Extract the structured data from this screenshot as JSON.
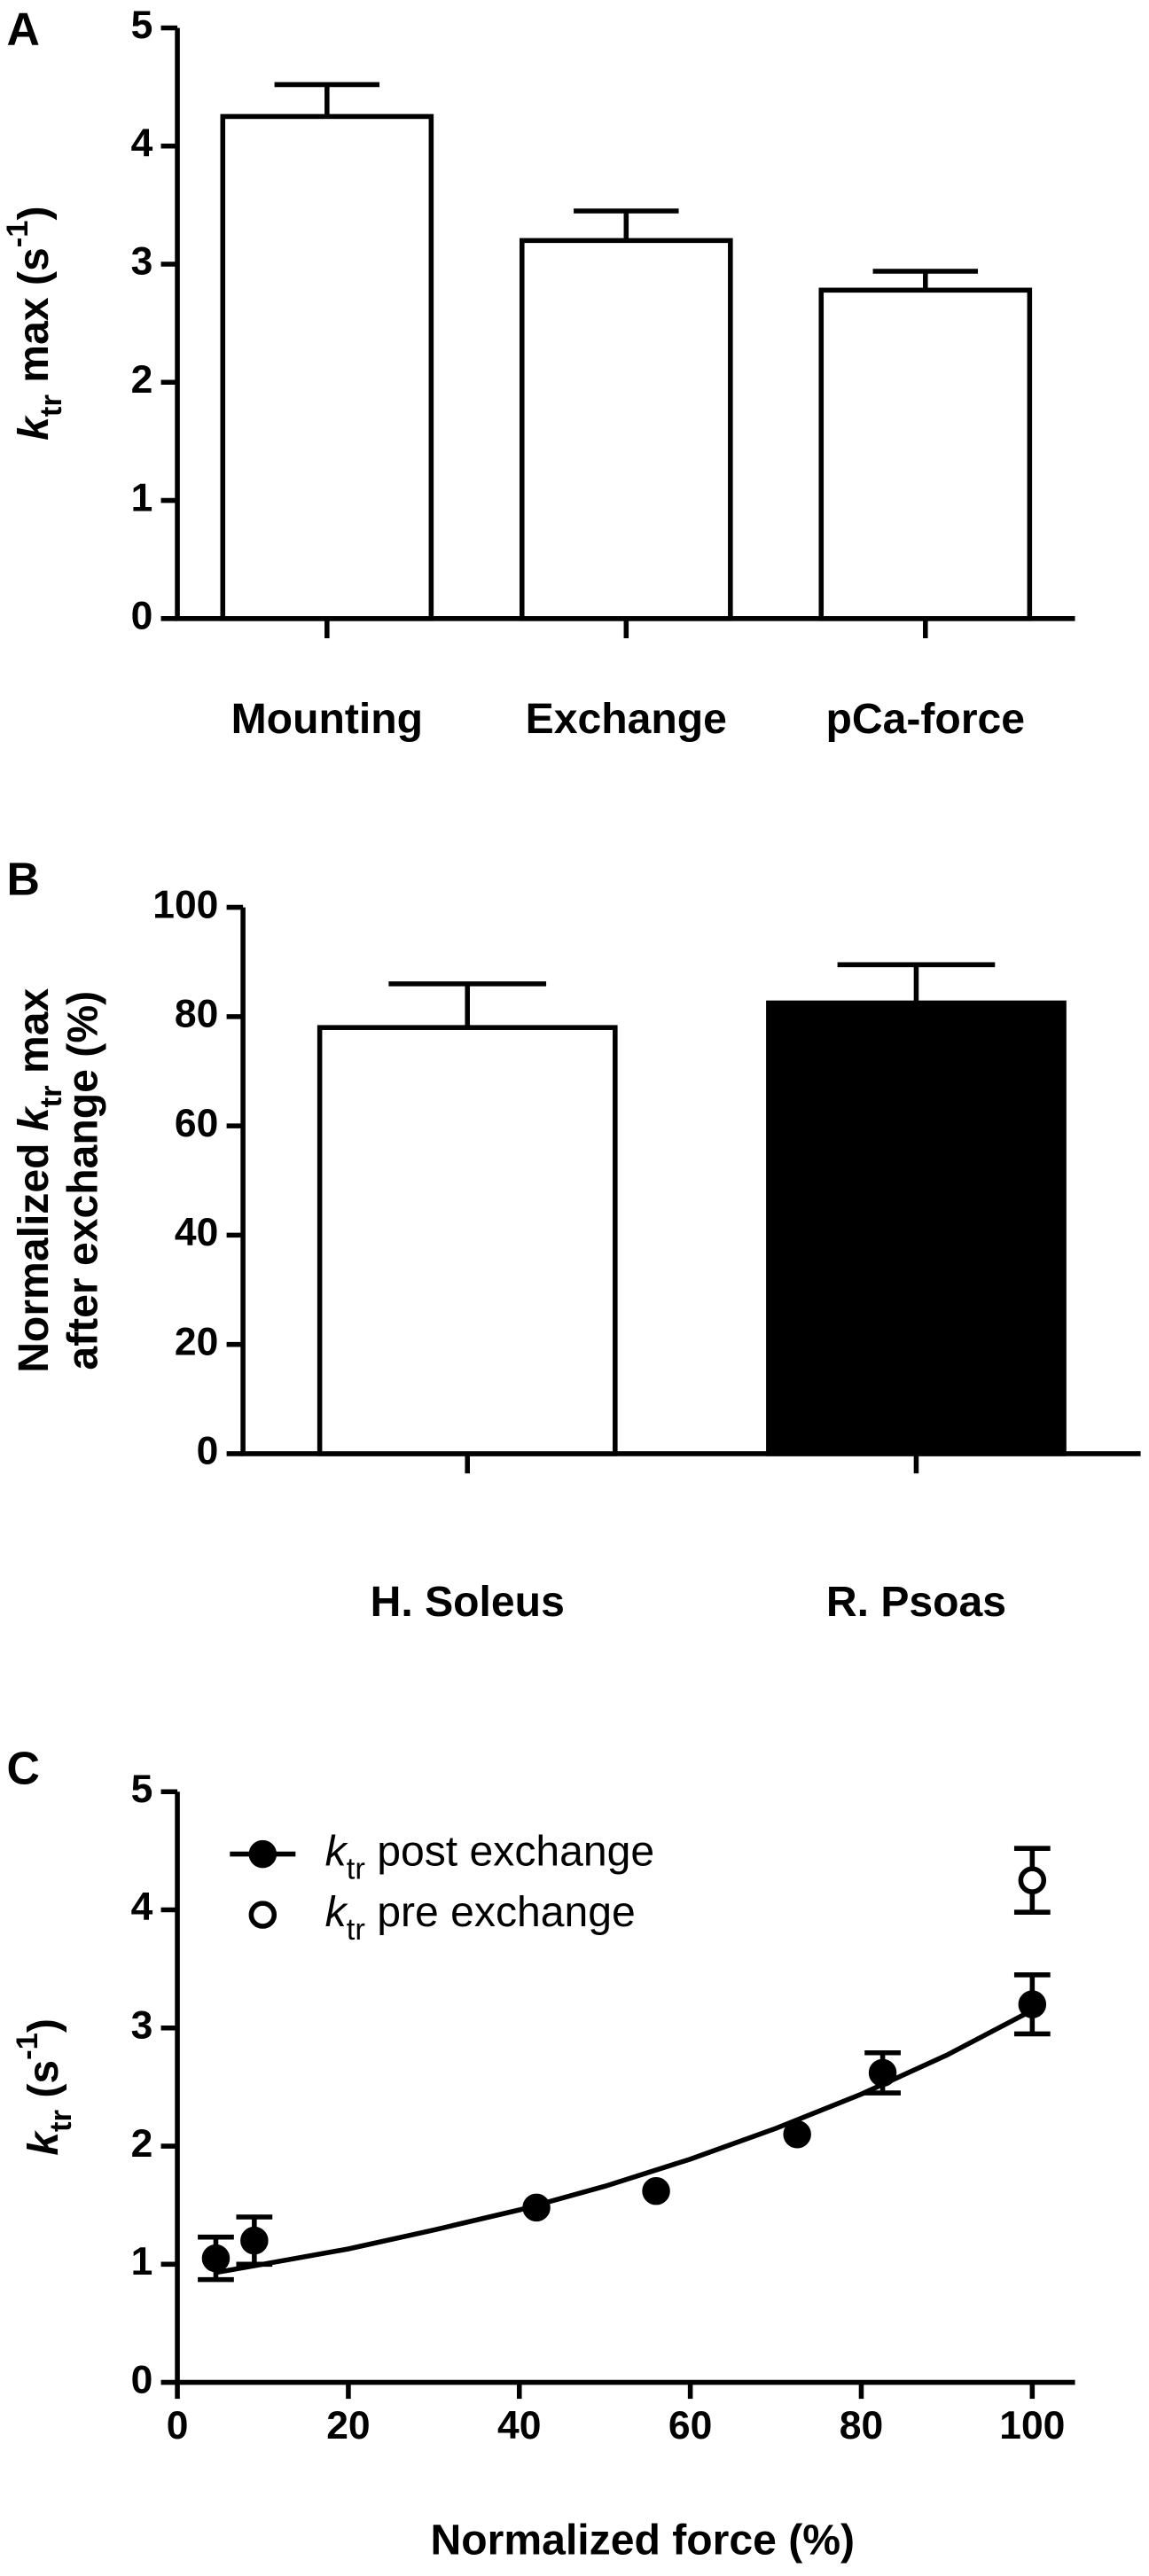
{
  "chart_data": [
    {
      "type": "bar",
      "panel": "A",
      "ylabel": [
        [
          {
            "text": "k",
            "style": "italic"
          },
          {
            "text": "tr",
            "style": "sub"
          },
          {
            "text": " max (s"
          },
          {
            "text": "-1",
            "style": "sup"
          },
          {
            "text": ")"
          }
        ]
      ],
      "categories": [
        "Mounting",
        "Exchange",
        "pCa-force"
      ],
      "values": [
        4.25,
        3.2,
        2.78
      ],
      "errors": [
        0.27,
        0.25,
        0.16
      ],
      "colors": [
        "#ffffff",
        "#ffffff",
        "#ffffff"
      ],
      "ylim": [
        0,
        5
      ],
      "yticks": [
        0,
        1,
        2,
        3,
        4,
        5
      ]
    },
    {
      "type": "bar",
      "panel": "B",
      "ylabel": [
        [
          {
            "text": "Normalized "
          },
          {
            "text": "k",
            "style": "italic"
          },
          {
            "text": "tr",
            "style": "sub"
          },
          {
            "text": " max"
          }
        ],
        [
          {
            "text": "after exchange (%)"
          }
        ]
      ],
      "categories": [
        "H. Soleus",
        "R. Psoas"
      ],
      "values": [
        78,
        82.5
      ],
      "errors": [
        8,
        7
      ],
      "colors": [
        "#ffffff",
        "#000000"
      ],
      "ylim": [
        0,
        100
      ],
      "yticks": [
        0,
        20,
        40,
        60,
        80,
        100
      ]
    },
    {
      "type": "scatter",
      "panel": "C",
      "xlabel": "Normalized force (%)",
      "ylabel": [
        [
          {
            "text": "k",
            "style": "italic"
          },
          {
            "text": "tr",
            "style": "sub"
          },
          {
            "text": " (s"
          },
          {
            "text": "-1",
            "style": "sup"
          },
          {
            "text": ")"
          }
        ]
      ],
      "xlim": [
        0,
        105
      ],
      "xticks": [
        0,
        20,
        40,
        60,
        80,
        100
      ],
      "ylim": [
        0,
        5
      ],
      "yticks": [
        0,
        1,
        2,
        3,
        4,
        5
      ],
      "legend": "upper left",
      "series": [
        {
          "name": [
            {
              "text": "k",
              "style": "italic"
            },
            {
              "text": "tr",
              "style": "sub"
            },
            {
              "text": " post exchange"
            }
          ],
          "color": "#000000",
          "marker": "filled",
          "x": [
            4.5,
            9,
            42,
            56,
            72.5,
            82.5,
            100
          ],
          "values": [
            1.05,
            1.2,
            1.48,
            1.62,
            2.1,
            2.62,
            3.2
          ],
          "errors": [
            0.18,
            0.2,
            null,
            null,
            null,
            0.17,
            0.25
          ],
          "fit": {
            "x": [
              4.5,
              10,
              20,
              30,
              40,
              50,
              60,
              70,
              80,
              90,
              100
            ],
            "values": [
              0.93,
              1.0,
              1.13,
              1.29,
              1.46,
              1.66,
              1.89,
              2.15,
              2.44,
              2.77,
              3.15
            ]
          }
        },
        {
          "name": [
            {
              "text": "k",
              "style": "italic"
            },
            {
              "text": "tr",
              "style": "sub"
            },
            {
              "text": " pre exchange"
            }
          ],
          "color": "#000000",
          "marker": "open",
          "x": [
            100
          ],
          "values": [
            4.25
          ],
          "errors": [
            0.27
          ]
        }
      ]
    }
  ]
}
